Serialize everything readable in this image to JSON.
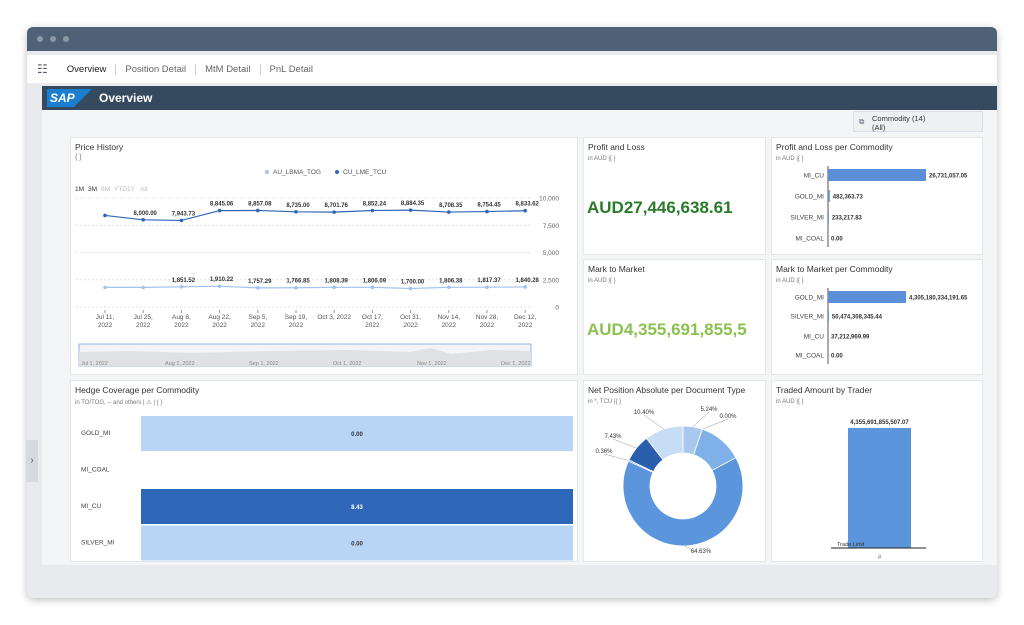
{
  "window": {
    "tabs": [
      "Overview",
      "Position Detail",
      "MtM Detail",
      "PnL Detail"
    ]
  },
  "header": {
    "logo": "SAP",
    "title": "Overview"
  },
  "filter": {
    "label": "Commodity (14)",
    "value": "(All)"
  },
  "price_history": {
    "type": "line",
    "title": "Price History",
    "subtitle": "{ }",
    "ranges": [
      "1M",
      "3M",
      "6M",
      "YTD",
      "1Y",
      "All"
    ],
    "categories": [
      "Jul 11,\n2022",
      "Jul 25,\n2022",
      "Aug 8,\n2022",
      "Aug 22,\n2022",
      "Sep 5,\n2022",
      "Sep 19,\n2022",
      "Oct 3, 2022",
      "Oct 17,\n2022",
      "Oct 31,\n2022",
      "Nov 14,\n2022",
      "Nov 28,\n2022",
      "Dec 12,\n2022"
    ],
    "series": [
      {
        "name": "AU_LBMA_TOG",
        "color": "#9fc3ee",
        "values": [
          1800,
          1800,
          1851.52,
          1910.22,
          1757.29,
          1766.85,
          1808.39,
          1806.09,
          1700,
          1806.38,
          1817.37,
          1840.28
        ],
        "value_labels": [
          null,
          null,
          "1,851.52",
          "1,910.22",
          "1,757.29",
          "1,766.85",
          "1,808.39",
          "1,806.09",
          "1,700.00",
          "1,806.38",
          "1,817.37",
          "1,840.28"
        ]
      },
      {
        "name": "CU_LME_TCU",
        "color": "#2e67b8",
        "values": [
          8400,
          8000,
          7943.73,
          8845.06,
          8857.08,
          8735,
          8701.76,
          8852.24,
          8884.35,
          8708.35,
          8754.45,
          8833.62
        ],
        "value_labels": [
          null,
          "8,000.00",
          "7,943.73",
          "8,845.06",
          "8,857.08",
          "8,735.00",
          "8,701.76",
          "8,852.24",
          "8,884.35",
          "8,708.35",
          "8,754.45",
          "8,833.62"
        ]
      }
    ],
    "ylim": [
      0,
      10000
    ],
    "yticks": [
      {
        "value": 10000,
        "label": "10,000"
      },
      {
        "value": 7500,
        "label": "7,500"
      },
      {
        "value": 5000,
        "label": "5,000"
      },
      {
        "value": 2500,
        "label": "2,500"
      },
      0
    ],
    "navigator_labels": [
      "Jul 1, 2022",
      "Aug 1, 2022",
      "Sep 1, 2022",
      "Oct 1, 2022",
      "Nov 1, 2022",
      "Dec 1, 2022"
    ]
  },
  "profit_and_loss": {
    "title": "Profit and Loss",
    "unit": "in AUD",
    "settings": "|{ }",
    "value": "AUD27,446,638.61",
    "color": "#2b7a2b"
  },
  "pnl_per_commodity": {
    "type": "bar",
    "title": "Profit and Loss per Commodity",
    "unit": "in AUD",
    "settings": "|{ }",
    "color": "#5b8fd9",
    "categories": [
      "MI_CU",
      "GOLD_MI",
      "SILVER_MI",
      "MI_COAL"
    ],
    "values": [
      26731057.05,
      482363.73,
      233217.83,
      0
    ],
    "value_labels": [
      "26,731,057.05",
      "482,363.73",
      "233,217.83",
      "0.00"
    ]
  },
  "mark_to_market": {
    "title": "Mark to Market",
    "unit": "in AUD",
    "settings": "|{ }",
    "value": "AUD4,355,691,855,5",
    "color": "#8cc152"
  },
  "mtm_per_commodity": {
    "type": "bar",
    "title": "Mark to Market per Commodity",
    "unit": "in AUD",
    "settings": "|{ }",
    "color": "#5b8fd9",
    "categories": [
      "GOLD_MI",
      "SILVER_MI",
      "MI_CU",
      "MI_COAL"
    ],
    "values": [
      4305180334191.65,
      50474308345.44,
      37212969.99,
      0
    ],
    "value_labels": [
      "4,305,180,334,191.65",
      "50,474,308,345.44",
      "37,212,969.99",
      "0.00"
    ]
  },
  "hedge_coverage": {
    "type": "heatmap",
    "title": "Hedge Coverage per Commodity",
    "unit": "in TO/TOG, -- and others",
    "settings": "| ⚠ | { }",
    "categories": [
      "GOLD_MI",
      "MI_COAL",
      "MI_CU",
      "SILVER_MI"
    ],
    "values": [
      0,
      null,
      8.43,
      0
    ],
    "value_labels": [
      "0.00",
      null,
      "8.43",
      "0.00"
    ],
    "colors": [
      "#b9d5f6",
      null,
      "#2e67b8",
      "#b9d5f6"
    ]
  },
  "net_position": {
    "type": "pie",
    "title": "Net Position Absolute per Document Type",
    "unit": "in *, TCU",
    "settings": "|{ }",
    "values": [
      5.24,
      0,
      11.94,
      64.63,
      0.36,
      7.43,
      10.4
    ],
    "value_labels": [
      "5.24%",
      "0.00%",
      null,
      "64.63%",
      "0.36%",
      "7.43%",
      "10.40%"
    ],
    "colors": [
      "#a9c8ef",
      "#a9c8ef",
      "#7fb0e8",
      "#5b95db",
      "#3a75c4",
      "#2a5fae",
      "#c7dcf5"
    ]
  },
  "traded_amount": {
    "type": "bar",
    "title": "Traded Amount by Trader",
    "unit": "in AUD",
    "settings": "|{ }",
    "color": "#5b95db",
    "categories": [
      "#"
    ],
    "values": [
      4355691855507.07
    ],
    "value_labels": [
      "4,355,691,855,507.07"
    ],
    "annotation": "Trade Limit"
  }
}
